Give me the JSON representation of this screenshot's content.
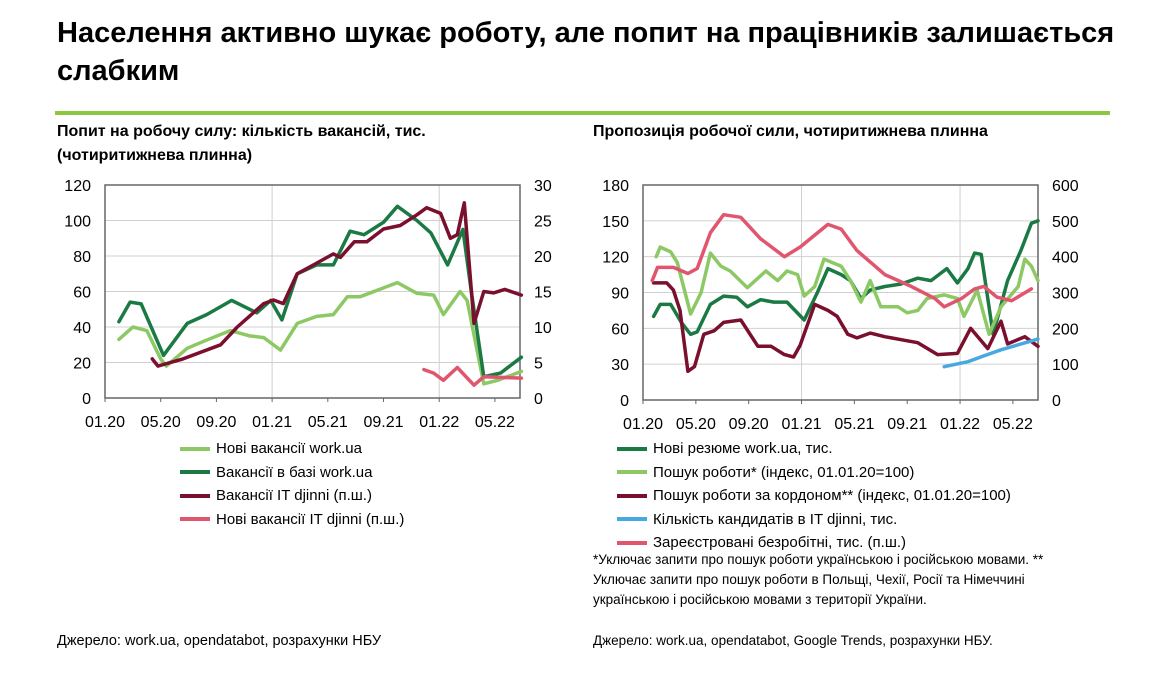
{
  "title": "Населення активно шукає роботу, але попит на працівників залишається слабким",
  "left": {
    "subtitle": "Попит на робочу силу: кількість вакансій, тис. (чотиритижнева плинна)",
    "source": "Джерело: work.ua, opendatabot, розрахунки НБУ"
  },
  "right": {
    "subtitle": "Пропозиція робочої сили, чотиритижнева плинна",
    "footnote": "*Уключає запити про пошук роботи українською і російською мовами. ** Уключає запити про пошук роботи в Польщі, Чехії, Росії та Німеччині українською і російською мовами з території України.",
    "source": "Джерело: work.ua, opendatabot, Google Trends, розрахунки НБУ."
  },
  "chart_data": [
    {
      "type": "line",
      "title": "Попит на робочу силу: кількість вакансій, тис. (чотиритижнева плинна)",
      "x_unit": "months since 01.20",
      "xlim": [
        0,
        29.8
      ],
      "xticks": [
        0,
        4,
        8,
        12,
        16,
        20,
        24,
        28
      ],
      "xtick_labels": [
        "01.20",
        "05.20",
        "09.20",
        "01.21",
        "05.21",
        "09.21",
        "01.22",
        "05.22"
      ],
      "ylim": [
        0,
        120
      ],
      "yticks": [
        "0",
        "20",
        "40",
        "60",
        "80",
        "100",
        "120"
      ],
      "y2lim": [
        0,
        30
      ],
      "y2ticks": [
        "0",
        "5",
        "10",
        "15",
        "20",
        "25",
        "30"
      ],
      "series": [
        {
          "name": "Нові вакансії work.ua",
          "color": "#8cc965",
          "axis": "left",
          "points": [
            [
              1,
              33
            ],
            [
              2,
              40
            ],
            [
              3,
              38
            ],
            [
              4,
              22
            ],
            [
              4.4,
              18
            ],
            [
              5.9,
              28
            ],
            [
              7.1,
              32
            ],
            [
              9,
              38
            ],
            [
              10.4,
              35
            ],
            [
              11.4,
              34
            ],
            [
              12.6,
              27
            ],
            [
              13.8,
              42
            ],
            [
              15.2,
              46
            ],
            [
              16.4,
              47
            ],
            [
              17.4,
              57
            ],
            [
              18.3,
              57
            ],
            [
              20,
              62
            ],
            [
              21,
              65
            ],
            [
              22.4,
              59
            ],
            [
              23.6,
              58
            ],
            [
              24.3,
              47
            ],
            [
              25.5,
              60
            ],
            [
              26,
              55
            ],
            [
              27.2,
              8
            ],
            [
              28.2,
              10
            ],
            [
              29.9,
              15
            ]
          ]
        },
        {
          "name": "Вакансії в базі work.ua",
          "color": "#1b7a44",
          "axis": "left",
          "points": [
            [
              1,
              43
            ],
            [
              1.8,
              54
            ],
            [
              2.6,
              53
            ],
            [
              4.2,
              24
            ],
            [
              5.9,
              42
            ],
            [
              7.3,
              47
            ],
            [
              9.1,
              55
            ],
            [
              10.9,
              48
            ],
            [
              11.9,
              55
            ],
            [
              12.7,
              44
            ],
            [
              13.8,
              70
            ],
            [
              15.2,
              75
            ],
            [
              16.4,
              75
            ],
            [
              17.6,
              94
            ],
            [
              18.6,
              92
            ],
            [
              20,
              99
            ],
            [
              21,
              108
            ],
            [
              22.4,
              100
            ],
            [
              23.4,
              93
            ],
            [
              24.6,
              75
            ],
            [
              25.7,
              95
            ],
            [
              26.3,
              60
            ],
            [
              27.2,
              12
            ],
            [
              28.4,
              14
            ],
            [
              29.9,
              23
            ]
          ]
        },
        {
          "name": "Вакансії IT djinni (п.ш.)",
          "color": "#7a0f2e",
          "axis": "right",
          "points": [
            [
              3.4,
              5.5
            ],
            [
              3.8,
              4.5
            ],
            [
              5.6,
              5.5
            ],
            [
              8.3,
              7.5
            ],
            [
              9.5,
              10
            ],
            [
              11.4,
              13.3
            ],
            [
              12.1,
              13.8
            ],
            [
              12.8,
              13.3
            ],
            [
              13.8,
              17.5
            ],
            [
              15.2,
              19
            ],
            [
              16.4,
              20.3
            ],
            [
              16.9,
              19.8
            ],
            [
              17.9,
              22
            ],
            [
              18.8,
              22
            ],
            [
              20,
              23.8
            ],
            [
              21.2,
              24.3
            ],
            [
              22.4,
              25.8
            ],
            [
              23.1,
              26.8
            ],
            [
              24.1,
              26
            ],
            [
              24.8,
              22.5
            ],
            [
              25.3,
              23
            ],
            [
              25.8,
              27.5
            ],
            [
              26.5,
              10.5
            ],
            [
              27.2,
              15
            ],
            [
              27.9,
              14.8
            ],
            [
              28.7,
              15.3
            ],
            [
              29.9,
              14.5
            ]
          ]
        },
        {
          "name": "Нові вакансії IT djinni (п.ш.)",
          "color": "#e0566e",
          "axis": "right",
          "points": [
            [
              22.9,
              4
            ],
            [
              23.6,
              3.5
            ],
            [
              24.3,
              2.5
            ],
            [
              25.3,
              4.3
            ],
            [
              26.5,
              1.8
            ],
            [
              27.2,
              3
            ],
            [
              29.9,
              2.8
            ]
          ]
        }
      ]
    },
    {
      "type": "line",
      "title": "Пропозиція робочої сили, чотиритижнева плинна",
      "x_unit": "months since 01.20",
      "xlim": [
        0,
        29.9
      ],
      "xticks": [
        0,
        4,
        8,
        12,
        16,
        20,
        24,
        28
      ],
      "xtick_labels": [
        "01.20",
        "05.20",
        "09.20",
        "01.21",
        "05.21",
        "09.21",
        "01.22",
        "05.22"
      ],
      "ylim": [
        0,
        180
      ],
      "yticks": [
        "0",
        "30",
        "60",
        "90",
        "120",
        "150",
        "180"
      ],
      "y2lim": [
        0,
        600
      ],
      "y2ticks": [
        "0",
        "100",
        "200",
        "300",
        "400",
        "500",
        "600"
      ],
      "series": [
        {
          "name": "Нові резюме work.ua, тис.",
          "color": "#1b7a44",
          "axis": "left",
          "points": [
            [
              0.8,
              70
            ],
            [
              1.3,
              80
            ],
            [
              2.1,
              80
            ],
            [
              2.9,
              65
            ],
            [
              3.6,
              55
            ],
            [
              4.1,
              57
            ],
            [
              5.1,
              80
            ],
            [
              6.1,
              87
            ],
            [
              7.1,
              86
            ],
            [
              7.9,
              78
            ],
            [
              8.9,
              84
            ],
            [
              9.9,
              82
            ],
            [
              10.9,
              82
            ],
            [
              12.2,
              67
            ],
            [
              13.2,
              90
            ],
            [
              14,
              110
            ],
            [
              15,
              105
            ],
            [
              15.7,
              100
            ],
            [
              16.5,
              85
            ],
            [
              17.2,
              92
            ],
            [
              18.3,
              95
            ],
            [
              19.5,
              97
            ],
            [
              20.8,
              102
            ],
            [
              21.8,
              100
            ],
            [
              23,
              110
            ],
            [
              23.8,
              98
            ],
            [
              24.6,
              110
            ],
            [
              25.1,
              123
            ],
            [
              25.6,
              122
            ],
            [
              26.5,
              55
            ],
            [
              27.6,
              100
            ],
            [
              28.6,
              125
            ],
            [
              29.4,
              148
            ],
            [
              29.9,
              150
            ]
          ]
        },
        {
          "name": "Пошук роботи* (індекс, 01.01.20=100)",
          "color": "#8cc965",
          "axis": "left",
          "points": [
            [
              1,
              120
            ],
            [
              1.3,
              128
            ],
            [
              2.1,
              124
            ],
            [
              2.6,
              115
            ],
            [
              3.6,
              72
            ],
            [
              4.4,
              90
            ],
            [
              5.1,
              123
            ],
            [
              5.9,
              112
            ],
            [
              6.6,
              108
            ],
            [
              7.9,
              94
            ],
            [
              9.3,
              108
            ],
            [
              10.2,
              100
            ],
            [
              10.9,
              108
            ],
            [
              11.7,
              105
            ],
            [
              12.2,
              87
            ],
            [
              13,
              95
            ],
            [
              13.7,
              118
            ],
            [
              15,
              112
            ],
            [
              15.7,
              100
            ],
            [
              16.5,
              82
            ],
            [
              17.2,
              100
            ],
            [
              18,
              78
            ],
            [
              19.3,
              78
            ],
            [
              20,
              73
            ],
            [
              20.8,
              75
            ],
            [
              21.5,
              85
            ],
            [
              22.8,
              88
            ],
            [
              23.8,
              85
            ],
            [
              24.3,
              70
            ],
            [
              25.3,
              92
            ],
            [
              26.2,
              55
            ],
            [
              27.1,
              78
            ],
            [
              28.4,
              95
            ],
            [
              28.9,
              118
            ],
            [
              29.4,
              112
            ],
            [
              29.9,
              100
            ]
          ]
        },
        {
          "name": "Пошук роботи за кордоном** (індекс, 01.01.20=100)",
          "color": "#7a0f2e",
          "axis": "left",
          "points": [
            [
              0.8,
              98
            ],
            [
              1.8,
              98
            ],
            [
              2.3,
              92
            ],
            [
              2.8,
              75
            ],
            [
              3.4,
              24
            ],
            [
              3.9,
              28
            ],
            [
              4.6,
              55
            ],
            [
              5.4,
              58
            ],
            [
              6.1,
              65
            ],
            [
              7.4,
              67
            ],
            [
              8.7,
              45
            ],
            [
              9.7,
              45
            ],
            [
              10.7,
              38
            ],
            [
              11.4,
              36
            ],
            [
              11.9,
              46
            ],
            [
              13,
              80
            ],
            [
              14,
              75
            ],
            [
              14.7,
              70
            ],
            [
              15.5,
              55
            ],
            [
              16.2,
              52
            ],
            [
              17.2,
              56
            ],
            [
              18.3,
              53
            ],
            [
              19.8,
              50
            ],
            [
              20.8,
              48
            ],
            [
              22.3,
              38
            ],
            [
              23.8,
              39
            ],
            [
              24.8,
              60
            ],
            [
              26.1,
              43
            ],
            [
              27.1,
              66
            ],
            [
              27.6,
              47
            ],
            [
              28.9,
              53
            ],
            [
              29.9,
              45
            ]
          ]
        },
        {
          "name": "Кількість кандидатів в IT djinni, тис.",
          "color": "#4aa8e0",
          "axis": "right",
          "points": [
            [
              22.8,
              93
            ],
            [
              24.6,
              107
            ],
            [
              25.8,
              123
            ],
            [
              27.1,
              140
            ],
            [
              29.9,
              170
            ]
          ]
        },
        {
          "name": "Зареєстровані безробітні, тис. (п.ш.)",
          "color": "#e0566e",
          "axis": "right",
          "points": [
            [
              0.7,
              333
            ],
            [
              1.1,
              370
            ],
            [
              2.3,
              370
            ],
            [
              3.4,
              353
            ],
            [
              4.1,
              367
            ],
            [
              5.1,
              467
            ],
            [
              6.1,
              517
            ],
            [
              7.4,
              510
            ],
            [
              8.9,
              450
            ],
            [
              10.7,
              400
            ],
            [
              11.9,
              427
            ],
            [
              14,
              490
            ],
            [
              15,
              477
            ],
            [
              16.2,
              417
            ],
            [
              18.3,
              350
            ],
            [
              20.3,
              317
            ],
            [
              22.1,
              283
            ],
            [
              22.8,
              260
            ],
            [
              24.1,
              283
            ],
            [
              25.1,
              310
            ],
            [
              25.8,
              317
            ],
            [
              26.8,
              287
            ],
            [
              27.9,
              277
            ],
            [
              29.4,
              310
            ]
          ]
        }
      ]
    }
  ]
}
